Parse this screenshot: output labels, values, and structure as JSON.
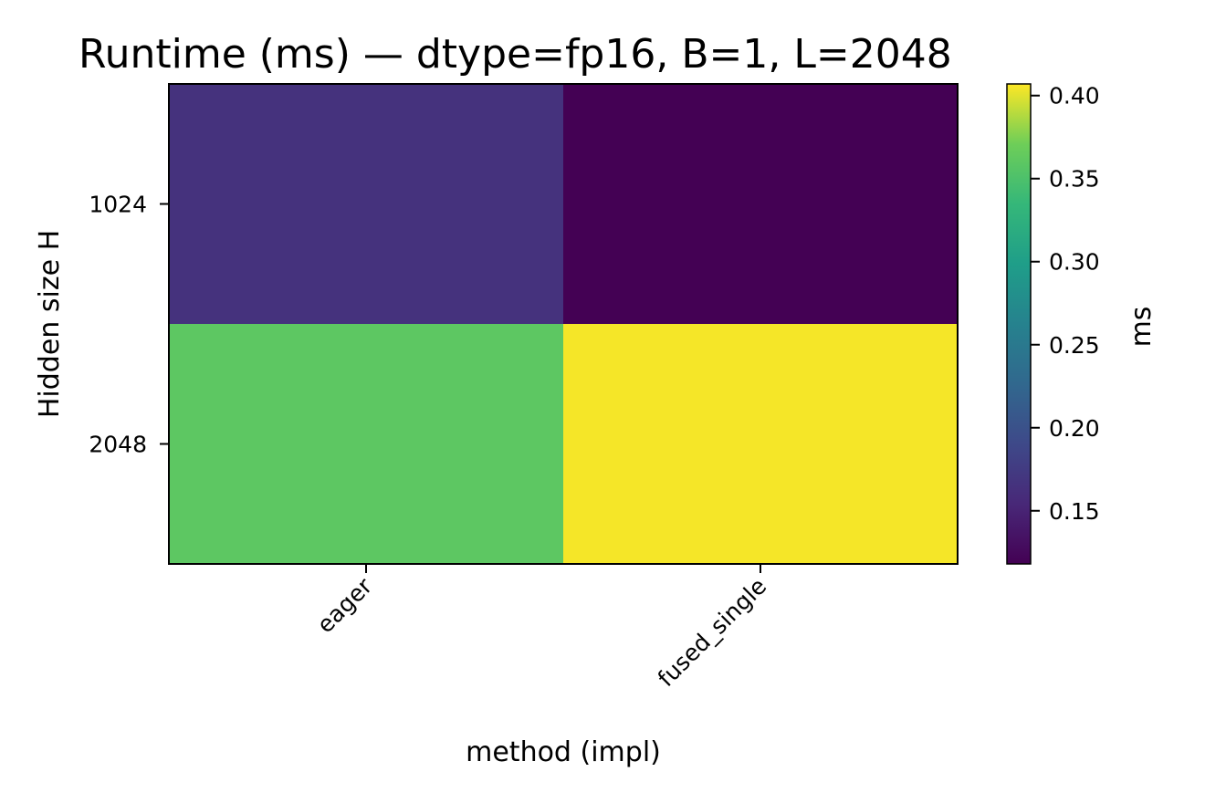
{
  "chart_data": {
    "type": "heatmap",
    "title": "Runtime (ms) — dtype=fp16, B=1, L=2048",
    "xlabel": "method (impl)",
    "ylabel": "Hidden size H",
    "x_categories": [
      "eager",
      "fused_single"
    ],
    "y_categories": [
      "1024",
      "2048"
    ],
    "values": [
      [
        0.165,
        0.118
      ],
      [
        0.36,
        0.405
      ]
    ],
    "colormap": "viridis",
    "colorbar": {
      "label": "ms",
      "range": [
        0.118,
        0.407
      ],
      "ticks": [
        0.15,
        0.2,
        0.25,
        0.3,
        0.35,
        0.4
      ],
      "tick_labels": [
        "0.15",
        "0.20",
        "0.25",
        "0.30",
        "0.35",
        "0.40"
      ]
    },
    "grid": false
  }
}
